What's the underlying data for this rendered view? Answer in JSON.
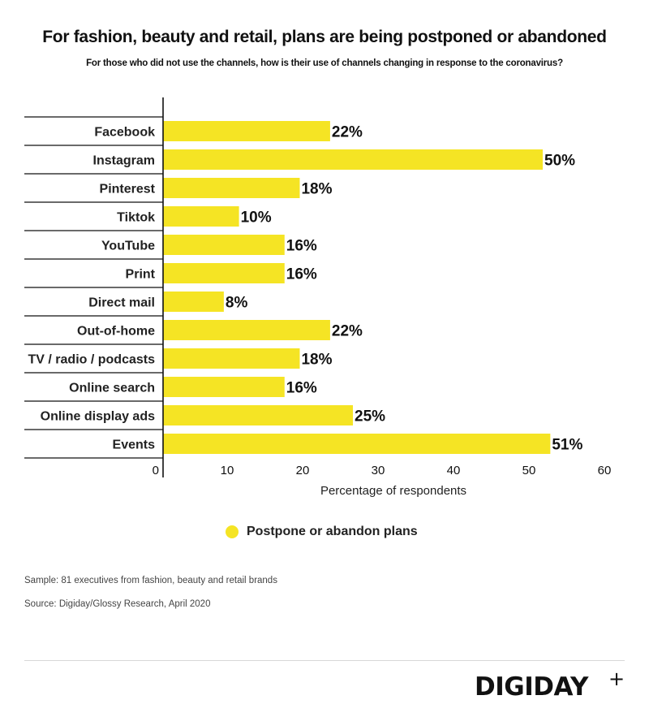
{
  "chart_data": {
    "type": "bar",
    "orientation": "horizontal",
    "title": "For fashion, beauty and retail, plans are being postponed or abandoned",
    "subtitle": "For those who did not use the channels, how is their use of channels changing in response to the coronavirus?",
    "categories": [
      "Facebook",
      "Instagram",
      "Pinterest",
      "Tiktok",
      "YouTube",
      "Print",
      "Direct mail",
      "Out-of-home",
      "TV / radio / podcasts",
      "Online search",
      "Online display ads",
      "Events"
    ],
    "series": [
      {
        "name": "Postpone or abandon plans",
        "color": "#f5e424",
        "values": [
          22,
          50,
          18,
          10,
          16,
          16,
          8,
          22,
          18,
          16,
          25,
          51
        ],
        "labels": [
          "22%",
          "50%",
          "18%",
          "10%",
          "16%",
          "16%",
          "8%",
          "22%",
          "18%",
          "16%",
          "25%",
          "51%"
        ]
      }
    ],
    "xlabel": "Percentage of respondents",
    "ylabel": "",
    "xlim": [
      0,
      60
    ],
    "xticks": [
      "0",
      "10",
      "20",
      "30",
      "40",
      "50",
      "60"
    ],
    "grid": false,
    "legend": "bottom-center"
  },
  "footer": {
    "sample": "Sample: 81 executives from fashion, beauty and retail brands",
    "source": "Source: Digiday/Glossy Research, April 2020",
    "logo": "DIGIDAY",
    "logo_plus": "+"
  }
}
